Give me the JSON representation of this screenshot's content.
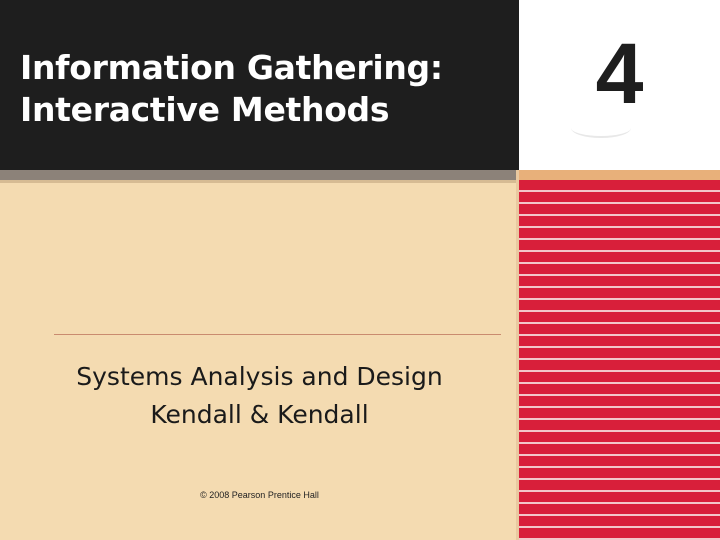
{
  "slide": {
    "title_lines": [
      "Information Gathering:",
      "Interactive Methods"
    ],
    "chapter_number": "4",
    "subtitle_lines": [
      "Systems Analysis and Design",
      "Kendall & Kendall"
    ],
    "copyright": "© 2008 Pearson Prentice Hall"
  },
  "colors": {
    "header_background": "#1e1e1e",
    "body_background": "#f4dbb1",
    "accent_red": "#d81f3a",
    "band_gray": "#8c8279"
  }
}
